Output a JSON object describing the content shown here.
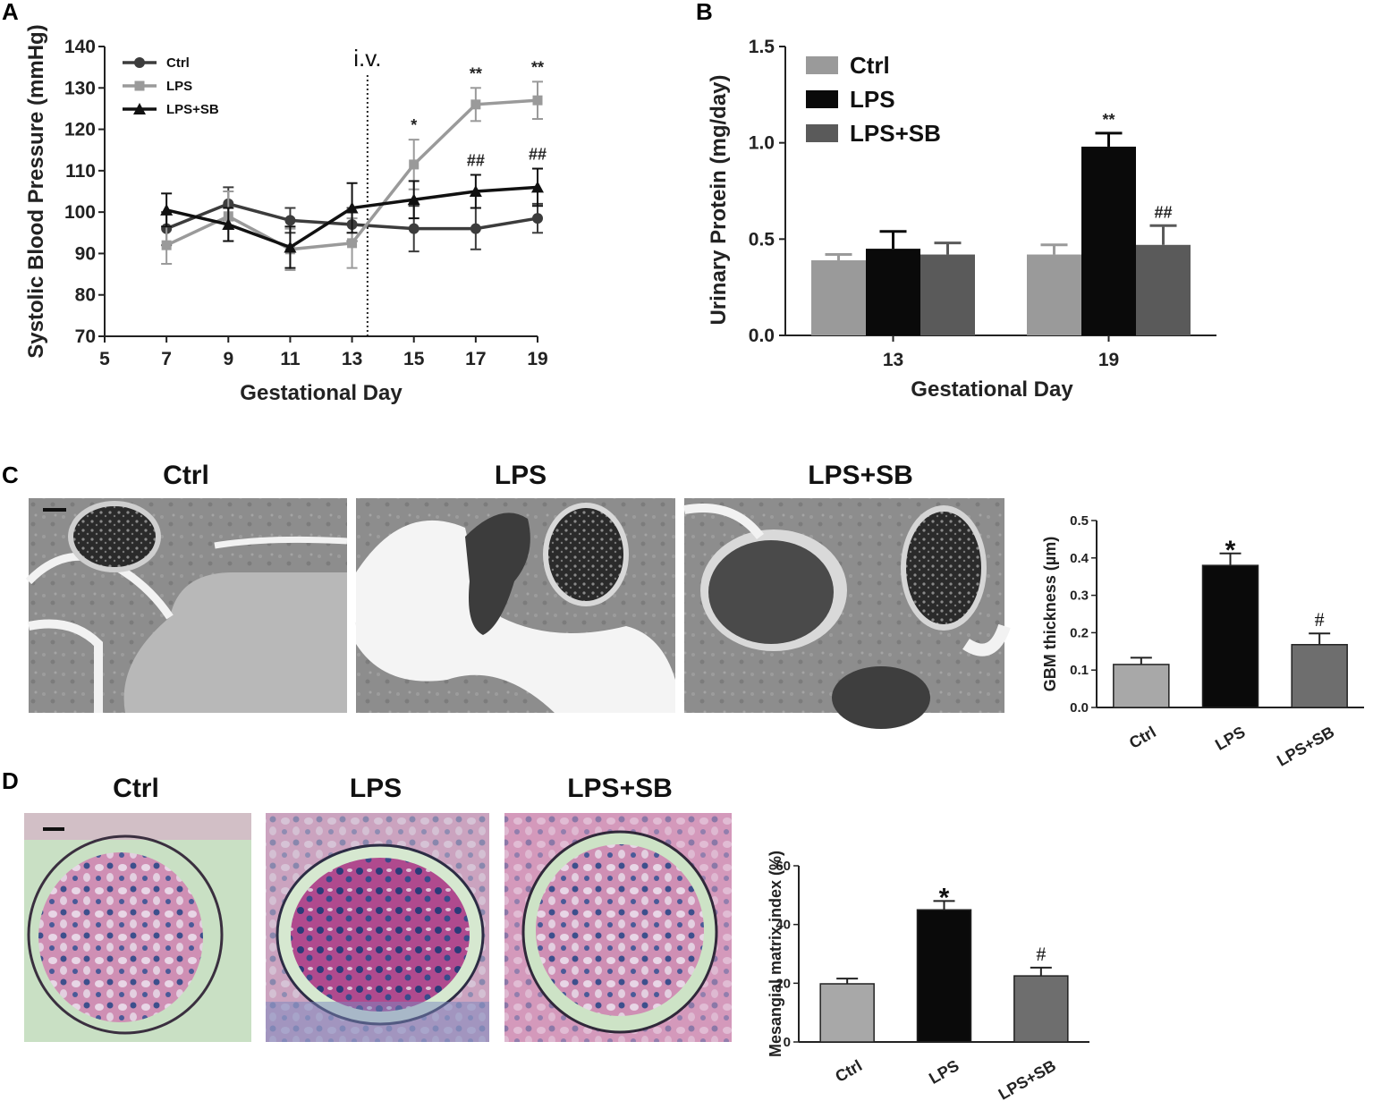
{
  "panels": {
    "A": "A",
    "B": "B",
    "C": "C",
    "D": "D"
  },
  "micrograph_titles": {
    "C": [
      "Ctrl",
      "LPS",
      "LPS+SB"
    ],
    "D": [
      "Ctrl",
      "LPS",
      "LPS+SB"
    ]
  },
  "chart_data": [
    {
      "id": "A",
      "type": "line",
      "xlabel": "Gestational Day",
      "ylabel": "Systolic Blood Pressure (mmHg)",
      "xlim": [
        5,
        19
      ],
      "ylim": [
        70,
        140
      ],
      "xticks": [
        5,
        7,
        9,
        11,
        13,
        15,
        17,
        19
      ],
      "yticks": [
        70,
        80,
        90,
        100,
        110,
        120,
        130,
        140
      ],
      "legend_position": "top-left",
      "annotation": {
        "text": "i.v.",
        "x": 13.5
      },
      "series": [
        {
          "name": "Ctrl",
          "color": "#3c3c3c",
          "marker": "circle",
          "x": [
            7,
            9,
            11,
            13,
            15,
            17,
            19
          ],
          "y": [
            96,
            102,
            98,
            97,
            96,
            96,
            98.5
          ],
          "err": [
            4,
            4,
            3,
            4,
            5.5,
            5,
            3.5
          ]
        },
        {
          "name": "LPS",
          "color": "#9a9a9a",
          "marker": "square",
          "x": [
            7,
            9,
            11,
            13,
            15,
            17,
            19
          ],
          "y": [
            92,
            99,
            91,
            92.5,
            111.5,
            126,
            127
          ],
          "err": [
            4.5,
            6,
            5,
            6,
            6,
            4,
            4.5
          ],
          "labels": [
            "",
            "",
            "",
            "",
            "*",
            "**",
            "**"
          ]
        },
        {
          "name": "LPS+SB",
          "color": "#111111",
          "marker": "triangle",
          "x": [
            7,
            9,
            11,
            13,
            15,
            17,
            19
          ],
          "y": [
            100.5,
            97,
            91.5,
            101,
            103,
            105,
            106
          ],
          "err": [
            4,
            4,
            5,
            6,
            4.5,
            4,
            4.5
          ],
          "labels": [
            "",
            "",
            "",
            "",
            "",
            "##",
            "##"
          ]
        }
      ]
    },
    {
      "id": "B",
      "type": "bar",
      "xlabel": "Gestational Day",
      "ylabel": "Urinary Protein (mg/day)",
      "ylim": [
        0,
        1.5
      ],
      "yticks": [
        "0.0",
        "0.5",
        "1.0",
        "1.5"
      ],
      "categories": [
        "13",
        "19"
      ],
      "legend_position": "top-left",
      "series": [
        {
          "name": "Ctrl",
          "color": "#9a9a9a",
          "values": [
            0.39,
            0.42
          ],
          "err": [
            0.03,
            0.05
          ],
          "labels": [
            "",
            ""
          ]
        },
        {
          "name": "LPS",
          "color": "#0a0a0a",
          "values": [
            0.45,
            0.98
          ],
          "err": [
            0.09,
            0.07
          ],
          "labels": [
            "",
            "**"
          ]
        },
        {
          "name": "LPS+SB",
          "color": "#5a5a5a",
          "values": [
            0.42,
            0.47
          ],
          "err": [
            0.06,
            0.1
          ],
          "labels": [
            "",
            "##"
          ]
        }
      ]
    },
    {
      "id": "C",
      "type": "bar",
      "ylabel": "GBM thickness (µm)",
      "ylim": [
        0,
        0.5
      ],
      "yticks": [
        "0.0",
        "0.1",
        "0.2",
        "0.3",
        "0.4",
        "0.5"
      ],
      "categories": [
        "Ctrl",
        "LPS",
        "LPS+SB"
      ],
      "colors": [
        "#a8a8a8",
        "#0a0a0a",
        "#6e6e6e"
      ],
      "values": [
        0.115,
        0.38,
        0.168
      ],
      "err": [
        0.018,
        0.032,
        0.03
      ],
      "labels": [
        "",
        "*",
        "#"
      ]
    },
    {
      "id": "D",
      "type": "bar",
      "ylabel": "Mesangial matrix index (%)",
      "ylim": [
        0,
        60
      ],
      "yticks": [
        "0",
        "20",
        "40",
        "60"
      ],
      "categories": [
        "Ctrl",
        "LPS",
        "LPS+SB"
      ],
      "colors": [
        "#a8a8a8",
        "#0a0a0a",
        "#6e6e6e"
      ],
      "values": [
        19.8,
        45,
        22.5
      ],
      "err": [
        1.8,
        3,
        2.8
      ],
      "labels": [
        "",
        "*",
        "#"
      ]
    }
  ]
}
